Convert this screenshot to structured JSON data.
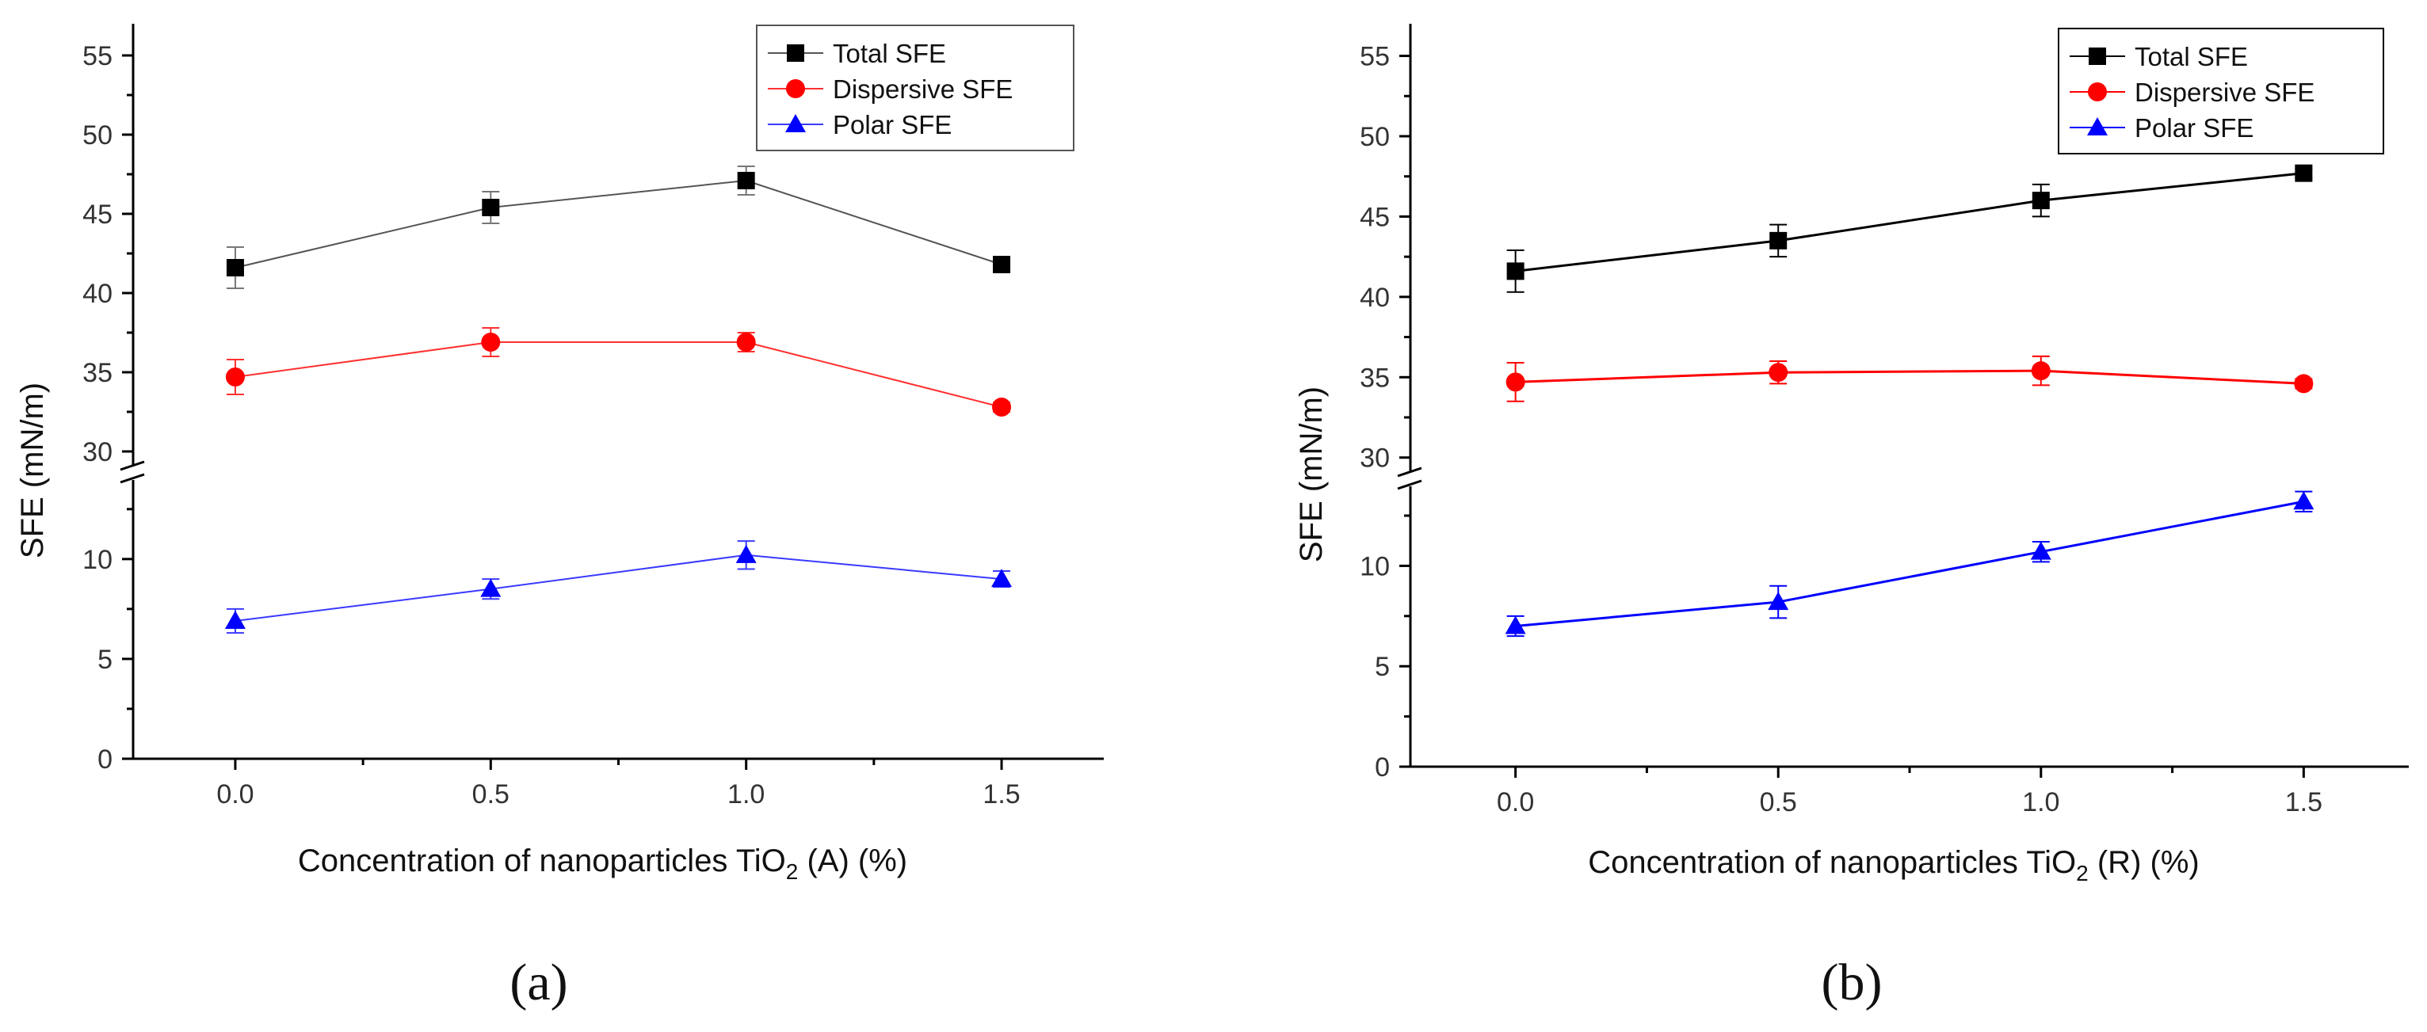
{
  "chart_data": [
    {
      "type": "line",
      "panel_label": "(a)",
      "ylabel": "SFE (mN/m)",
      "xlabel": {
        "prefix": "Concentration of nanoparticles TiO",
        "sub": "2",
        "suffix": " (A) (%)"
      },
      "x": [
        0.0,
        0.5,
        1.0,
        1.5
      ],
      "xticks": [
        "0.0",
        "0.5",
        "1.0",
        "1.5"
      ],
      "xlim": [
        -0.2,
        1.7
      ],
      "y_break": {
        "lower_range": [
          0,
          14
        ],
        "upper_range": [
          29,
          57
        ],
        "broken_between": [
          14,
          29
        ]
      },
      "yticks_lower": [
        "0",
        "5",
        "10"
      ],
      "yticks_upper": [
        "30",
        "35",
        "40",
        "45",
        "50",
        "55"
      ],
      "legend_position": "top-right",
      "series": [
        {
          "name": "Total SFE",
          "marker": "square",
          "color": "#000000",
          "line_color": "#555555",
          "values": [
            41.6,
            45.4,
            47.1,
            41.8
          ],
          "errors": [
            1.3,
            1.0,
            0.9,
            0.3
          ]
        },
        {
          "name": "Dispersive SFE",
          "marker": "circle",
          "color": "#ff0000",
          "line_color": "#ff3030",
          "values": [
            34.7,
            36.9,
            36.9,
            32.8
          ],
          "errors": [
            1.1,
            0.9,
            0.6,
            0.3
          ]
        },
        {
          "name": "Polar SFE",
          "marker": "triangle",
          "color": "#0000ff",
          "line_color": "#3a3aff",
          "values": [
            6.9,
            8.5,
            10.2,
            9.0
          ],
          "errors": [
            0.6,
            0.5,
            0.7,
            0.4
          ]
        }
      ]
    },
    {
      "type": "line",
      "panel_label": "(b)",
      "ylabel": "SFE (mN/m)",
      "xlabel": {
        "prefix": "Concentration of nanoparticles TiO",
        "sub": "2",
        "suffix": " (R) (%)"
      },
      "x": [
        0.0,
        0.5,
        1.0,
        1.5
      ],
      "xticks": [
        "0.0",
        "0.5",
        "1.0",
        "1.5"
      ],
      "xlim": [
        -0.2,
        1.7
      ],
      "y_break": {
        "lower_range": [
          0,
          14
        ],
        "upper_range": [
          29,
          57
        ],
        "broken_between": [
          14,
          29
        ]
      },
      "yticks_lower": [
        "0",
        "5",
        "10"
      ],
      "yticks_upper": [
        "30",
        "35",
        "40",
        "45",
        "50",
        "55"
      ],
      "legend_position": "top-right",
      "series": [
        {
          "name": "Total SFE",
          "marker": "square",
          "color": "#000000",
          "line_color": "#000000",
          "values": [
            41.6,
            43.5,
            46.0,
            47.7
          ],
          "errors": [
            1.3,
            1.0,
            1.0,
            0.3
          ]
        },
        {
          "name": "Dispersive SFE",
          "marker": "circle",
          "color": "#ff0000",
          "line_color": "#ff0000",
          "values": [
            34.7,
            35.3,
            35.4,
            34.6
          ],
          "errors": [
            1.2,
            0.7,
            0.9,
            0.3
          ]
        },
        {
          "name": "Polar SFE",
          "marker": "triangle",
          "color": "#0000ff",
          "line_color": "#0000ff",
          "values": [
            7.0,
            8.2,
            10.7,
            13.2
          ],
          "errors": [
            0.5,
            0.8,
            0.5,
            0.5
          ]
        }
      ]
    }
  ]
}
